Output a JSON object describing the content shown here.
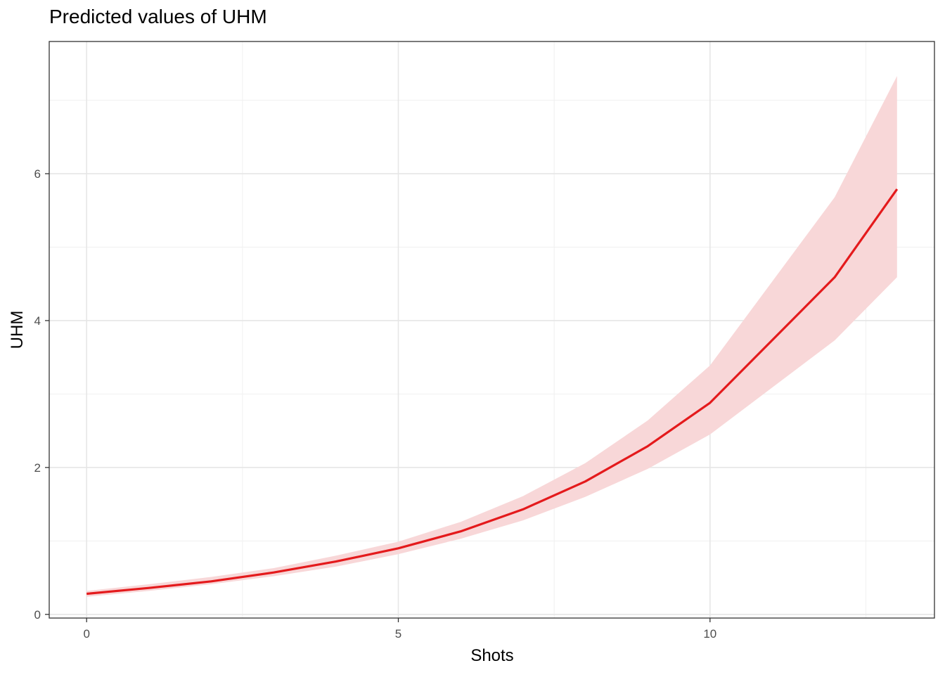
{
  "chart_data": {
    "type": "line",
    "title": "Predicted values of UHM",
    "xlabel": "Shots",
    "ylabel": "UHM",
    "xlim": [
      -0.6,
      13.6
    ],
    "ylim": [
      -0.05,
      7.8
    ],
    "x_ticks": [
      0,
      5,
      10
    ],
    "x_tick_labels": [
      "0",
      "5",
      "10"
    ],
    "x_minor_ticks": [
      2.5,
      7.5,
      12.5
    ],
    "y_ticks": [
      0,
      2,
      4,
      6
    ],
    "y_tick_labels": [
      "0",
      "2",
      "4",
      "6"
    ],
    "y_minor_ticks": [
      1,
      3,
      5,
      7
    ],
    "grid": true,
    "series": [
      {
        "x": [
          0,
          1,
          2,
          3,
          4,
          5,
          6,
          7,
          8,
          9,
          10,
          12,
          13
        ],
        "y": [
          0.28,
          0.36,
          0.45,
          0.57,
          0.72,
          0.9,
          1.13,
          1.43,
          1.81,
          2.29,
          2.88,
          4.59,
          5.79
        ],
        "lower": [
          0.24,
          0.32,
          0.41,
          0.52,
          0.65,
          0.82,
          1.03,
          1.28,
          1.6,
          1.98,
          2.45,
          3.73,
          4.59
        ],
        "upper": [
          0.32,
          0.41,
          0.51,
          0.63,
          0.8,
          0.99,
          1.26,
          1.61,
          2.06,
          2.64,
          3.39,
          5.68,
          7.33
        ],
        "color": "#e41a1c",
        "band_color": "#f8d7d8"
      }
    ]
  }
}
